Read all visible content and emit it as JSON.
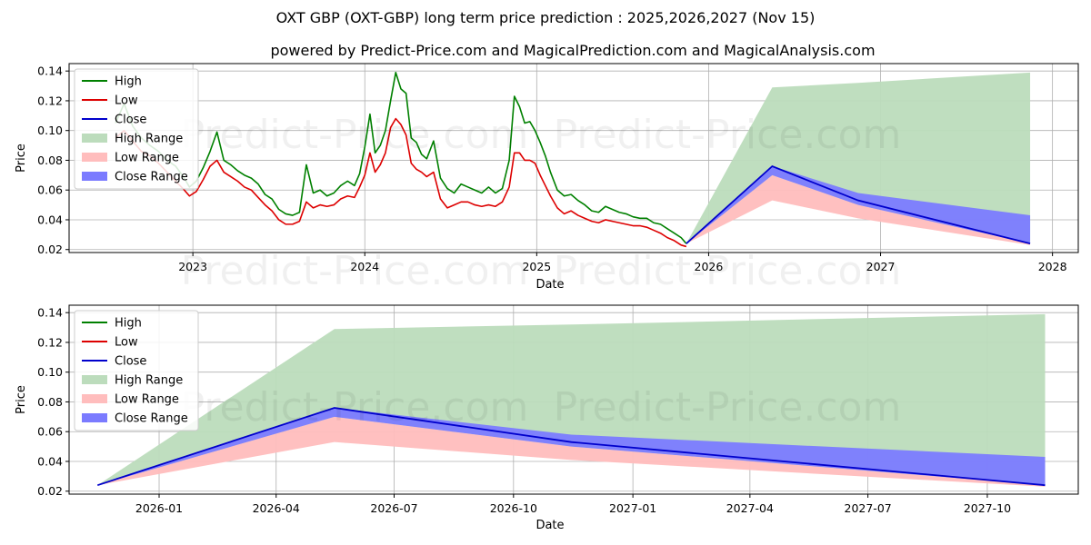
{
  "title": "OXT GBP (OXT-GBP) long term price prediction : 2025,2026,2027 (Nov 15)",
  "subtitle": "powered by Predict-Price.com and MagicalPrediction.com and MagicalAnalysis.com",
  "watermark": "Predict-Price.com",
  "colors": {
    "high": "#008000",
    "low": "#dd0000",
    "close": "#0000cc",
    "high_range": "#bcdcbc",
    "low_range": "#ffbdbd",
    "close_range": "#7b7bff",
    "grid": "#b0b0b0"
  },
  "legend": {
    "entries": [
      {
        "label": "High",
        "kind": "line",
        "color_key": "high"
      },
      {
        "label": "Low",
        "kind": "line",
        "color_key": "low"
      },
      {
        "label": "Close",
        "kind": "line",
        "color_key": "close"
      },
      {
        "label": "High Range",
        "kind": "patch",
        "color_key": "high_range"
      },
      {
        "label": "Low Range",
        "kind": "patch",
        "color_key": "low_range"
      },
      {
        "label": "Close Range",
        "kind": "patch",
        "color_key": "close_range"
      }
    ],
    "placement": "upper-left"
  },
  "chart_data": [
    {
      "type": "line",
      "name": "history-and-forecast",
      "xlabel": "Date",
      "ylabel": "Price",
      "xlim": [
        2022.28,
        2028.15
      ],
      "ylim": [
        0.018,
        0.145
      ],
      "x_ticks": [
        2023,
        2024,
        2025,
        2026,
        2027,
        2028
      ],
      "x_tick_labels": [
        "2023",
        "2024",
        "2025",
        "2026",
        "2027",
        "2028"
      ],
      "y_ticks": [
        0.02,
        0.04,
        0.06,
        0.08,
        0.1,
        0.12,
        0.14
      ],
      "y_tick_labels": [
        "0.02",
        "0.04",
        "0.06",
        "0.08",
        "0.10",
        "0.12",
        "0.14"
      ],
      "grid": true,
      "history": {
        "x": [
          2022.55,
          2022.6,
          2022.65,
          2022.7,
          2022.75,
          2022.8,
          2022.85,
          2022.9,
          2022.95,
          2022.98,
          2023.02,
          2023.06,
          2023.1,
          2023.14,
          2023.18,
          2023.22,
          2023.26,
          2023.3,
          2023.34,
          2023.38,
          2023.42,
          2023.46,
          2023.5,
          2023.54,
          2023.58,
          2023.62,
          2023.66,
          2023.7,
          2023.74,
          2023.78,
          2023.82,
          2023.86,
          2023.9,
          2023.94,
          2023.97,
          2024.0,
          2024.03,
          2024.06,
          2024.09,
          2024.12,
          2024.15,
          2024.18,
          2024.21,
          2024.24,
          2024.27,
          2024.3,
          2024.33,
          2024.36,
          2024.4,
          2024.44,
          2024.48,
          2024.52,
          2024.56,
          2024.6,
          2024.64,
          2024.68,
          2024.72,
          2024.76,
          2024.8,
          2024.84,
          2024.87,
          2024.9,
          2024.93,
          2024.96,
          2024.99,
          2025.02,
          2025.05,
          2025.08,
          2025.12,
          2025.16,
          2025.2,
          2025.24,
          2025.28,
          2025.32,
          2025.36,
          2025.4,
          2025.44,
          2025.48,
          2025.52,
          2025.56,
          2025.6,
          2025.64,
          2025.68,
          2025.72,
          2025.76,
          2025.8,
          2025.84,
          2025.87
        ],
        "high": [
          0.105,
          0.118,
          0.103,
          0.095,
          0.09,
          0.086,
          0.08,
          0.076,
          0.068,
          0.062,
          0.066,
          0.075,
          0.086,
          0.099,
          0.08,
          0.077,
          0.073,
          0.07,
          0.068,
          0.064,
          0.057,
          0.054,
          0.047,
          0.044,
          0.043,
          0.045,
          0.077,
          0.058,
          0.06,
          0.056,
          0.058,
          0.063,
          0.066,
          0.063,
          0.071,
          0.089,
          0.111,
          0.085,
          0.09,
          0.1,
          0.12,
          0.139,
          0.128,
          0.125,
          0.095,
          0.092,
          0.084,
          0.081,
          0.093,
          0.068,
          0.061,
          0.058,
          0.064,
          0.062,
          0.06,
          0.058,
          0.062,
          0.058,
          0.061,
          0.08,
          0.123,
          0.116,
          0.105,
          0.106,
          0.1,
          0.092,
          0.083,
          0.072,
          0.06,
          0.056,
          0.057,
          0.053,
          0.05,
          0.046,
          0.045,
          0.049,
          0.047,
          0.045,
          0.044,
          0.042,
          0.041,
          0.041,
          0.038,
          0.037,
          0.034,
          0.031,
          0.028,
          0.024
        ],
        "low": [
          0.095,
          0.1,
          0.093,
          0.086,
          0.083,
          0.078,
          0.072,
          0.066,
          0.06,
          0.056,
          0.059,
          0.067,
          0.076,
          0.08,
          0.072,
          0.069,
          0.066,
          0.062,
          0.06,
          0.055,
          0.05,
          0.046,
          0.04,
          0.037,
          0.037,
          0.039,
          0.052,
          0.048,
          0.05,
          0.049,
          0.05,
          0.054,
          0.056,
          0.055,
          0.062,
          0.07,
          0.085,
          0.072,
          0.077,
          0.085,
          0.102,
          0.108,
          0.104,
          0.097,
          0.078,
          0.074,
          0.072,
          0.069,
          0.072,
          0.054,
          0.048,
          0.05,
          0.052,
          0.052,
          0.05,
          0.049,
          0.05,
          0.049,
          0.052,
          0.062,
          0.085,
          0.085,
          0.08,
          0.08,
          0.078,
          0.07,
          0.063,
          0.056,
          0.048,
          0.044,
          0.046,
          0.043,
          0.041,
          0.039,
          0.038,
          0.04,
          0.039,
          0.038,
          0.037,
          0.036,
          0.036,
          0.035,
          0.033,
          0.031,
          0.028,
          0.026,
          0.023,
          0.022
        ]
      },
      "forecast": {
        "x": [
          2025.87,
          2026.37,
          2026.87,
          2027.87
        ],
        "close": [
          0.024,
          0.076,
          0.053,
          0.024
        ],
        "close_upper": [
          0.024,
          0.076,
          0.058,
          0.043
        ],
        "close_lower": [
          0.024,
          0.07,
          0.05,
          0.024
        ],
        "high_upper": [
          0.024,
          0.129,
          0.132,
          0.139
        ],
        "low_lower": [
          0.024,
          0.053,
          0.041,
          0.023
        ]
      }
    },
    {
      "type": "line",
      "name": "forecast-zoom",
      "xlabel": "Date",
      "ylabel": "Price",
      "xlim": [
        2025.81,
        2027.94
      ],
      "ylim": [
        0.018,
        0.145
      ],
      "x_ticks": [
        2026.0,
        2026.247,
        2026.496,
        2026.748,
        2027.0,
        2027.247,
        2027.496,
        2027.748
      ],
      "x_tick_labels": [
        "2026-01",
        "2026-04",
        "2026-07",
        "2026-10",
        "2027-01",
        "2027-04",
        "2027-07",
        "2027-10"
      ],
      "y_ticks": [
        0.02,
        0.04,
        0.06,
        0.08,
        0.1,
        0.12,
        0.14
      ],
      "y_tick_labels": [
        "0.02",
        "0.04",
        "0.06",
        "0.08",
        "0.10",
        "0.12",
        "0.14"
      ],
      "grid": true,
      "forecast": {
        "x": [
          2025.87,
          2026.37,
          2026.87,
          2027.87
        ],
        "close": [
          0.024,
          0.076,
          0.053,
          0.024
        ],
        "close_upper": [
          0.024,
          0.076,
          0.058,
          0.043
        ],
        "close_lower": [
          0.024,
          0.07,
          0.05,
          0.024
        ],
        "high_upper": [
          0.024,
          0.129,
          0.132,
          0.139
        ],
        "low_lower": [
          0.024,
          0.053,
          0.041,
          0.023
        ]
      }
    }
  ]
}
